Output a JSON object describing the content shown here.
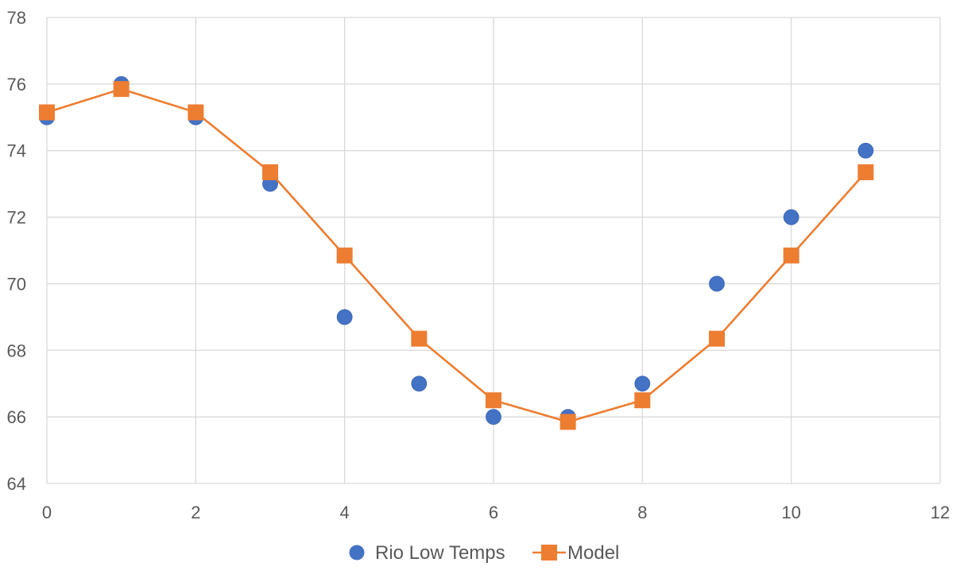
{
  "chart_data": {
    "type": "scatter",
    "title": "",
    "xlabel": "",
    "ylabel": "",
    "xlim": [
      0,
      12
    ],
    "ylim": [
      64,
      78
    ],
    "x_ticks": [
      0,
      2,
      4,
      6,
      8,
      10,
      12
    ],
    "y_ticks": [
      64,
      66,
      68,
      70,
      72,
      74,
      76,
      78
    ],
    "grid": true,
    "legend_position": "bottom",
    "series": [
      {
        "name": "Rio Low Temps",
        "style": "markers",
        "marker": "circle",
        "color": "#4472c4",
        "x": [
          0,
          1,
          2,
          3,
          4,
          5,
          6,
          7,
          8,
          9,
          10,
          11
        ],
        "y": [
          75,
          76,
          75,
          73,
          69,
          67,
          66,
          66,
          67,
          70,
          72,
          74
        ]
      },
      {
        "name": "Model",
        "style": "line-markers",
        "marker": "square",
        "color": "#ed7d31",
        "x": [
          0,
          1,
          2,
          3,
          4,
          5,
          6,
          7,
          8,
          9,
          10,
          11
        ],
        "y": [
          75.15,
          75.85,
          75.15,
          73.35,
          70.85,
          68.35,
          66.5,
          65.85,
          66.5,
          68.35,
          70.85,
          73.35
        ]
      }
    ]
  }
}
